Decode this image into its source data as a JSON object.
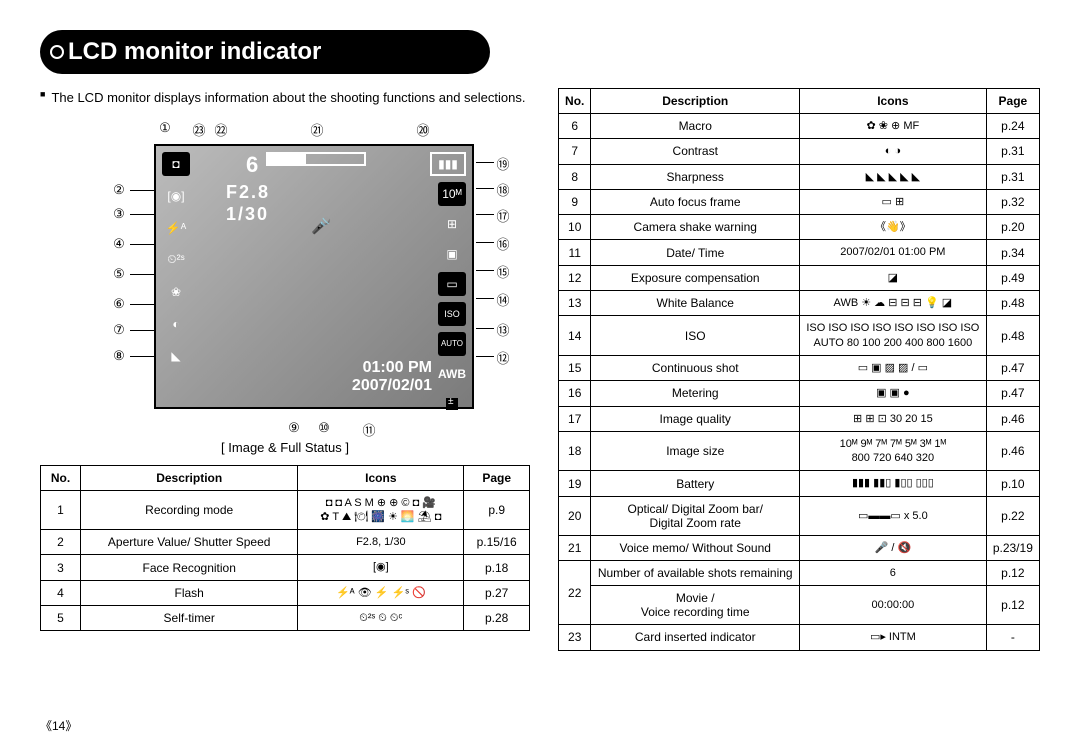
{
  "page_title": "LCD monitor indicator",
  "intro": "The LCD monitor displays information about the shooting functions and selections.",
  "image_caption": "[ Image & Full Status ]",
  "footer_page": "《14》",
  "screen": {
    "remaining": "6",
    "aperture": "F2.8",
    "shutter": "1/30",
    "time": "01:00 PM",
    "date": "2007/02/01",
    "awb_label": "AWB",
    "iso_label": "ISO",
    "auto_label": "AUTO",
    "imgsize_label": "10ᴹ",
    "zoom_label": "x 5.0"
  },
  "callouts_top": [
    "①",
    "㉓",
    "㉒",
    "㉑",
    "⑳"
  ],
  "callouts_left": [
    "②",
    "③",
    "④",
    "⑤",
    "⑥",
    "⑦",
    "⑧"
  ],
  "callouts_right": [
    "⑲",
    "⑱",
    "⑰",
    "⑯",
    "⑮",
    "⑭",
    "⑬",
    "⑫"
  ],
  "callouts_bottom": [
    "⑨",
    "⑩",
    "⑪"
  ],
  "table_headers": {
    "no": "No.",
    "desc": "Description",
    "icons": "Icons",
    "page": "Page"
  },
  "left_table": [
    {
      "no": "1",
      "desc": "Recording mode",
      "icons": "◘ ◘ A S M ⊕ ⊕ © ◘ 🎥\n✿ T ⛰ 🍽 🎆 ☀ 🌅 ⛱ ◘",
      "page": "p.9"
    },
    {
      "no": "2",
      "desc": "Aperture Value/ Shutter Speed",
      "icons": "F2.8, 1/30",
      "page": "p.15/16"
    },
    {
      "no": "3",
      "desc": "Face Recognition",
      "icons": "[◉]",
      "page": "p.18"
    },
    {
      "no": "4",
      "desc": "Flash",
      "icons": "⚡ᴬ  👁  ⚡  ⚡ˢ  🚫",
      "page": "p.27"
    },
    {
      "no": "5",
      "desc": "Self-timer",
      "icons": "⏲²ˢ  ⏲  ⏲ᶜ",
      "page": "p.28"
    }
  ],
  "right_table": [
    {
      "no": "6",
      "desc": "Macro",
      "icons": "✿   ❀   ⊕   MF",
      "page": "p.24"
    },
    {
      "no": "7",
      "desc": "Contrast",
      "icons": "◐   ◑",
      "page": "p.31"
    },
    {
      "no": "8",
      "desc": "Sharpness",
      "icons": "◣  ◣  ◣  ◣  ◣",
      "page": "p.31"
    },
    {
      "no": "9",
      "desc": "Auto focus frame",
      "icons": "▭   ⊞",
      "page": "p.32"
    },
    {
      "no": "10",
      "desc": "Camera shake warning",
      "icons": "《👋》",
      "page": "p.20"
    },
    {
      "no": "11",
      "desc": "Date/ Time",
      "icons": "2007/02/01   01:00 PM",
      "page": "p.34"
    },
    {
      "no": "12",
      "desc": "Exposure compensation",
      "icons": "◪",
      "page": "p.49"
    },
    {
      "no": "13",
      "desc": "White Balance",
      "icons": "AWB  ☀  ☁  ⊟  ⊟  ⊟  💡  ◪",
      "page": "p.48"
    },
    {
      "no": "14",
      "desc": "ISO",
      "icons": "ISO ISO ISO ISO ISO ISO ISO ISO\nAUTO 80 100 200 400 800 1600",
      "page": "p.48"
    },
    {
      "no": "15",
      "desc": "Continuous shot",
      "icons": "▭  ▣  ▨  ▨  / ▭",
      "page": "p.47"
    },
    {
      "no": "16",
      "desc": "Metering",
      "icons": "▣   ▣   ●",
      "page": "p.47"
    },
    {
      "no": "17",
      "desc": "Image quality",
      "icons": "⊞  ⊞  ⊡  30  20  15",
      "page": "p.46"
    },
    {
      "no": "18",
      "desc": "Image size",
      "icons": "10ᴹ 9ᴹ 7ᴹ 7ᴹ 5ᴹ 3ᴹ 1ᴹ\n800 720 640 320",
      "page": "p.46"
    },
    {
      "no": "19",
      "desc": "Battery",
      "icons": "▮▮▮ ▮▮▯ ▮▯▯ ▯▯▯",
      "page": "p.10"
    },
    {
      "no": "20",
      "desc": "Optical/ Digital Zoom bar/\nDigital Zoom rate",
      "icons": "▭▬▬▭  x 5.0",
      "page": "p.22"
    },
    {
      "no": "21",
      "desc": "Voice memo/ Without Sound",
      "icons": "🎤  /  🔇",
      "page": "p.23/19"
    },
    {
      "no": "22a",
      "desc": "Number of available shots remaining",
      "icons": "6",
      "page": "p.12",
      "merged_no": "22"
    },
    {
      "no": "22b",
      "desc": "Movie /\nVoice recording time",
      "icons": "00:00:00",
      "page": "p.12"
    },
    {
      "no": "23",
      "desc": "Card inserted indicator",
      "icons": "▭▸   INTM",
      "page": "-"
    }
  ],
  "colors": {
    "black": "#000000",
    "white": "#ffffff",
    "screen_bg_start": "#bcbcbc",
    "screen_bg_end": "#7b7b7b"
  }
}
